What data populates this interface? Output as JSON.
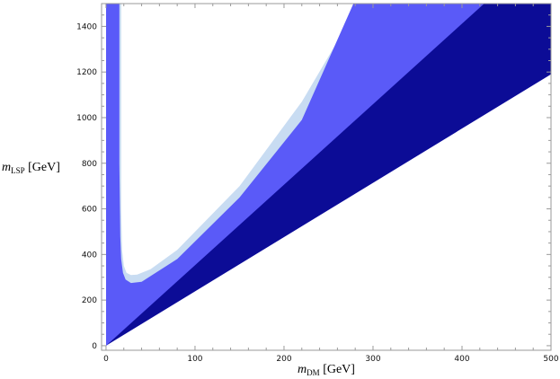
{
  "chart_data": {
    "type": "area",
    "title": "",
    "xlabel": {
      "var": "m",
      "sub": "DM",
      "unit": " [GeV]"
    },
    "ylabel": {
      "var": "m",
      "sub": "LSP",
      "unit": " [GeV]"
    },
    "xlim": [
      -5,
      500
    ],
    "ylim": [
      -20,
      1500
    ],
    "x_ticks": [
      0,
      100,
      200,
      300,
      400,
      500
    ],
    "y_ticks": [
      0,
      200,
      400,
      600,
      800,
      1000,
      1200,
      1400
    ],
    "grid": false,
    "legend": "none",
    "colors": {
      "boundary_band": "#c8dcf2",
      "allowed_region": "#5a5af8",
      "dark_region": "#0c0c96",
      "frame": "#9a9a9a",
      "background": "#ffffff"
    },
    "regions": [
      {
        "name": "light-boundary",
        "color_key": "boundary_band",
        "x": [
          0,
          0,
          17,
          17,
          18,
          20,
          23,
          28,
          35,
          50,
          80,
          150,
          220,
          285,
          290,
          300,
          500,
          500
        ],
        "y": [
          0,
          1500,
          1500,
          600,
          420,
          350,
          320,
          310,
          312,
          335,
          420,
          700,
          1070,
          1500,
          1500,
          1500,
          1500,
          0
        ]
      },
      {
        "name": "blue-allowed",
        "color_key": "allowed_region",
        "x": [
          0,
          0,
          15,
          15,
          16,
          17,
          19,
          22,
          28,
          40,
          80,
          150,
          220,
          278,
          500,
          500
        ],
        "y": [
          0,
          1500,
          1500,
          800,
          480,
          380,
          320,
          290,
          275,
          280,
          380,
          650,
          990,
          1500,
          1500,
          0
        ]
      },
      {
        "name": "dark-region",
        "color_key": "dark_region",
        "x": [
          0,
          425,
          500,
          500
        ],
        "y": [
          0,
          1500,
          1500,
          1190
        ]
      },
      {
        "name": "white-lower-right",
        "color_key": "background",
        "x": [
          0,
          500,
          500
        ],
        "y": [
          0,
          1190,
          -20
        ]
      }
    ]
  }
}
